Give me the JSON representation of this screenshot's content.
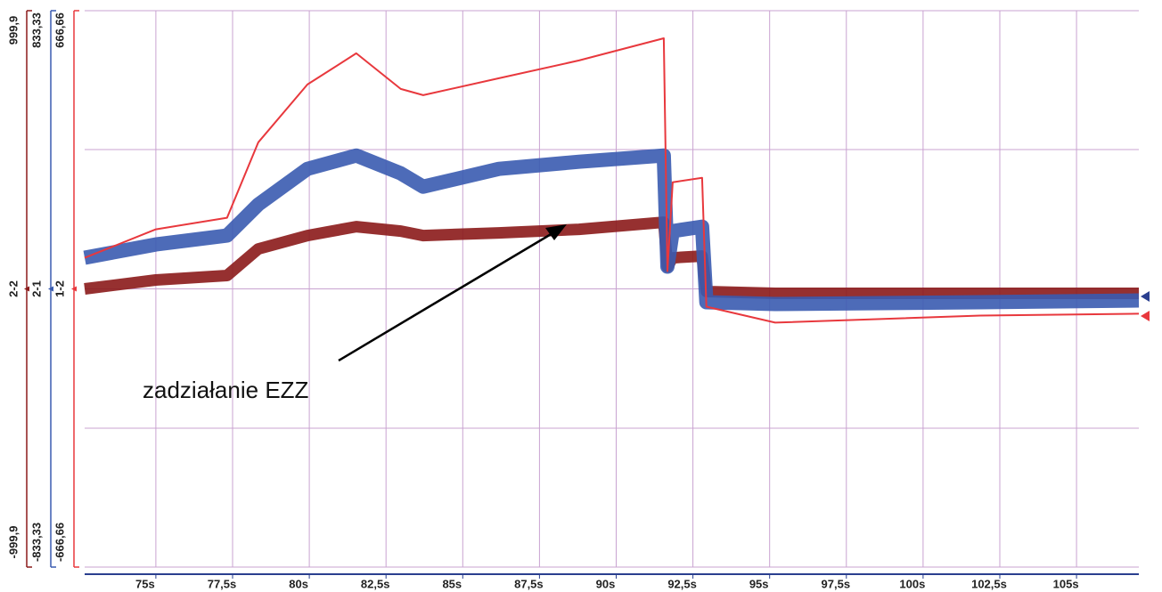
{
  "chart_data": {
    "type": "line",
    "annotation": "zadziałanie EZZ",
    "xlim": [
      72.68,
      107.03
    ],
    "xticks": [
      {
        "value": 75,
        "label": "75s"
      },
      {
        "value": 77.5,
        "label": "77,5s"
      },
      {
        "value": 80,
        "label": "80s"
      },
      {
        "value": 82.5,
        "label": "82,5s"
      },
      {
        "value": 85,
        "label": "85s"
      },
      {
        "value": 87.5,
        "label": "87,5s"
      },
      {
        "value": 90,
        "label": "90s"
      },
      {
        "value": 92.5,
        "label": "92,5s"
      },
      {
        "value": 95,
        "label": "95s"
      },
      {
        "value": 97.5,
        "label": "97,5s"
      },
      {
        "value": 100,
        "label": "100s"
      },
      {
        "value": 102.5,
        "label": "102,5s"
      },
      {
        "value": 105,
        "label": "105s"
      }
    ],
    "grid": true,
    "x": [
      72.68,
      75,
      77.32,
      78.34,
      79.94,
      81.53,
      82.98,
      83.71,
      86.18,
      88.79,
      91.55,
      91.67,
      91.84,
      92.8,
      92.94,
      95.18,
      101.86,
      107.03
    ],
    "series": [
      {
        "name": "2-2",
        "color": "#8b1a1a",
        "ylim": [
          -999.9,
          999.9
        ],
        "yticks": [
          {
            "value": 999.9,
            "label": "999,9"
          },
          {
            "value": -999.9,
            "label": "-999,9"
          }
        ],
        "values": [
          0,
          31.9,
          47.9,
          143.8,
          191.7,
          223.6,
          207.6,
          191.7,
          201.3,
          214,
          239.6,
          79.9,
          111.8,
          118.2,
          -9.6,
          -16,
          -16,
          -16
        ]
      },
      {
        "name": "2-1",
        "color": "#3a5bb0",
        "ylim": [
          -833.33,
          833.33
        ],
        "yticks": [
          {
            "value": 833.33,
            "label": "833,33"
          },
          {
            "value": -833.33,
            "label": "-833,33"
          }
        ],
        "values": [
          93.2,
          133.1,
          159.7,
          252.9,
          359.4,
          399.4,
          346.1,
          306.2,
          359.4,
          380.7,
          399.4,
          66.6,
          173.1,
          186.4,
          -39.9,
          -45.3,
          -39.9,
          -34.6
        ]
      },
      {
        "name": "1-2",
        "color": "#e8383d",
        "ylim": [
          -666.66,
          666.66
        ],
        "yticks": [
          {
            "value": 666.66,
            "label": "666,66"
          },
          {
            "value": -666.66,
            "label": "-666,66"
          }
        ],
        "values": [
          74.5,
          142.7,
          170.4,
          351.4,
          489.9,
          564.4,
          479.2,
          464.3,
          504.8,
          547.4,
          600.6,
          42.6,
          255.6,
          266.2,
          -42.6,
          -80.9,
          -63.9,
          -59.6
        ]
      }
    ]
  }
}
